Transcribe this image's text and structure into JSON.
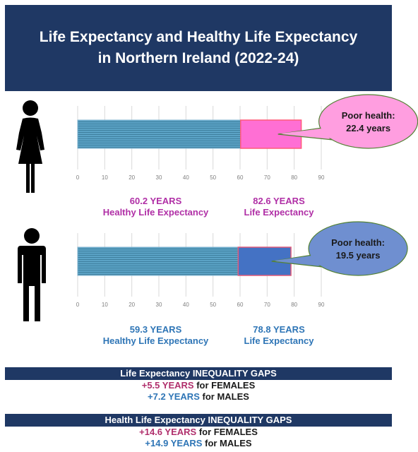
{
  "title": {
    "line1": "Life Expectancy and Healthy Life Expectancy",
    "line2": "in Northern Ireland (2022-24)"
  },
  "chart_data": [
    {
      "type": "bar",
      "orientation": "horizontal-stacked",
      "group": "female",
      "xlim": [
        0,
        90
      ],
      "xticks": [
        "0",
        "10",
        "20",
        "30",
        "40",
        "50",
        "60",
        "70",
        "80",
        "90"
      ],
      "healthy_value": 60.2,
      "total_value": 82.6,
      "healthy_label_value": "60.2 YEARS",
      "healthy_label_text": "Healthy Life Expectancy",
      "total_label_value": "82.6 YEARS",
      "total_label_text": "Life Expectancy",
      "bubble_line1": "Poor health:",
      "bubble_line2": "22.4 years",
      "colors": {
        "healthy": "#5ba3c6",
        "poor": "#ff6fd4",
        "bubble": "#ff9ee0",
        "poor_border": "#ff5b7a"
      }
    },
    {
      "type": "bar",
      "orientation": "horizontal-stacked",
      "group": "male",
      "xlim": [
        0,
        90
      ],
      "xticks": [
        "0",
        "10",
        "20",
        "30",
        "40",
        "50",
        "60",
        "70",
        "80",
        "90"
      ],
      "healthy_value": 59.3,
      "total_value": 78.8,
      "healthy_label_value": "59.3 YEARS",
      "healthy_label_text": "Healthy Life Expectancy",
      "total_label_value": "78.8 YEARS",
      "total_label_text": "Life Expectancy",
      "bubble_line1": "Poor health:",
      "bubble_line2": "19.5 years",
      "colors": {
        "healthy": "#5ba3c6",
        "poor": "#4472c4",
        "bubble": "#6f8fd0",
        "poor_border": "#e05b7a"
      }
    }
  ],
  "le_gaps": {
    "title": "Life Expectancy INEQUALITY GAPS",
    "female_value": "+5.5 YEARS",
    "female_text": "for FEMALES",
    "male_value": "+7.2 YEARS",
    "male_text": "for MALES"
  },
  "hle_gaps": {
    "title": "Health Life Expectancy INEQUALITY GAPS",
    "female_value": "+14.6 YEARS",
    "female_text": "for FEMALES",
    "male_value": "+14.9 YEARS",
    "male_text": "for MALES"
  },
  "icons": {
    "female": "female-person-icon",
    "male": "male-person-icon"
  }
}
